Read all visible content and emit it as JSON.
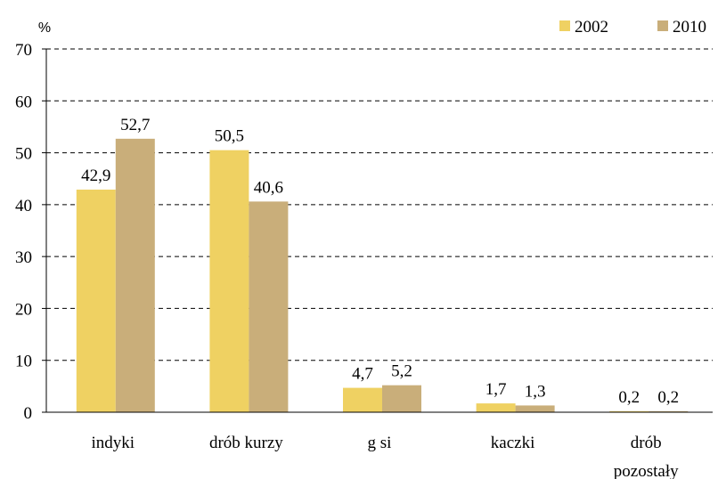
{
  "chart_data": {
    "type": "bar",
    "y_label": "%",
    "categories": [
      "indyki",
      "drób kurzy",
      "g si",
      "kaczki",
      "drób\npozostały"
    ],
    "series": [
      {
        "name": "2002",
        "color": "#efd162",
        "values": [
          42.9,
          50.5,
          4.7,
          1.7,
          0.2
        ],
        "value_labels": [
          "42,9",
          "50,5",
          "4,7",
          "1,7",
          "0,2"
        ]
      },
      {
        "name": "2010",
        "color": "#c9ae7a",
        "values": [
          52.7,
          40.6,
          5.2,
          1.3,
          0.2
        ],
        "value_labels": [
          "52,7",
          "40,6",
          "5,2",
          "1,3",
          "0,2"
        ]
      }
    ],
    "ylim": [
      0,
      70
    ],
    "yticks": [
      0,
      10,
      20,
      30,
      40,
      50,
      60,
      70
    ],
    "grid": true,
    "legend": "top-right"
  }
}
